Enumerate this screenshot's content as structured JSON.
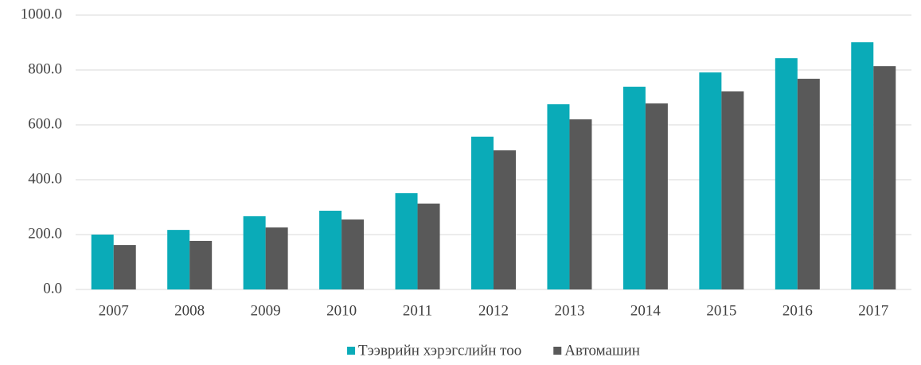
{
  "chart_data": {
    "type": "bar",
    "categories": [
      "2007",
      "2008",
      "2009",
      "2010",
      "2011",
      "2012",
      "2013",
      "2014",
      "2015",
      "2016",
      "2017"
    ],
    "series": [
      {
        "name": "Тээврийн хэрэгслийн тоо",
        "color": "#0aabb8",
        "values": [
          200,
          217,
          267,
          287,
          351,
          557,
          675,
          739,
          791,
          843,
          901
        ]
      },
      {
        "name": "Автомашин",
        "color": "#595959",
        "values": [
          162,
          177,
          226,
          255,
          313,
          507,
          620,
          678,
          722,
          768,
          814
        ]
      }
    ],
    "ylim": [
      0,
      1000
    ],
    "yticks": [
      {
        "value": 0,
        "label": "0.0"
      },
      {
        "value": 200,
        "label": "200.0"
      },
      {
        "value": 400,
        "label": "400.0"
      },
      {
        "value": 600,
        "label": "600.0"
      },
      {
        "value": 800,
        "label": "800.0"
      },
      {
        "value": 1000,
        "label": "1000.0"
      }
    ],
    "grid": true,
    "legend": "bottom"
  }
}
